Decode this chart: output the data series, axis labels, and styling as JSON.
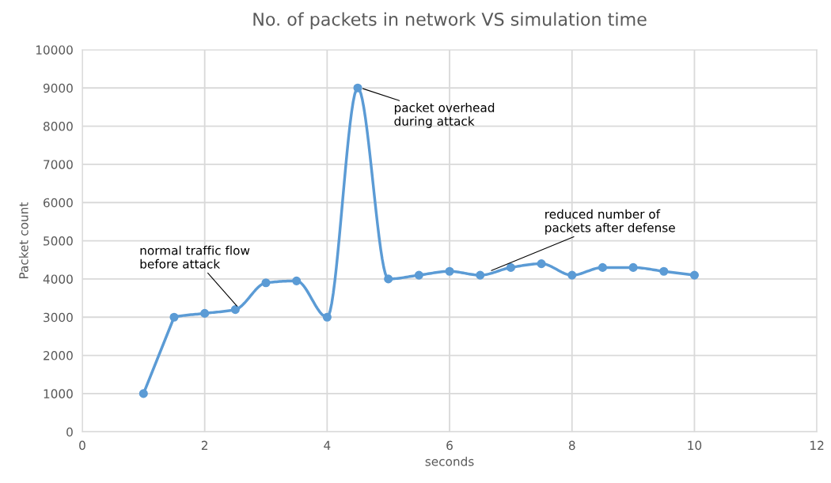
{
  "chart_data": {
    "type": "line",
    "title": "No. of packets in network VS simulation time",
    "xlabel": "seconds",
    "ylabel": "Packet count",
    "x": [
      1,
      1.5,
      2,
      2.5,
      3,
      3.5,
      4,
      4.5,
      5,
      5.5,
      6,
      6.5,
      7,
      7.5,
      8,
      8.5,
      9,
      9.5,
      10
    ],
    "series": [
      {
        "color": "#5b9bd5",
        "values": [
          1000,
          3000,
          3100,
          3200,
          3900,
          3950,
          3000,
          9000,
          4000,
          4100,
          4200,
          4100,
          4300,
          4400,
          4100,
          4300,
          4300,
          4200,
          4100
        ]
      }
    ],
    "xlim": [
      0,
      12
    ],
    "xticks": [
      0,
      2,
      4,
      6,
      8,
      10,
      12
    ],
    "ylim": [
      0,
      10000
    ],
    "yticks": [
      0,
      1000,
      2000,
      3000,
      4000,
      5000,
      6000,
      7000,
      8000,
      9000,
      10000
    ],
    "grid": true,
    "marker": "circle",
    "line_style": "solid",
    "annotations": [
      {
        "text": "normal traffic flow\nbefore attack",
        "x": 2.55,
        "y": 3250
      },
      {
        "text": "packet overhead\nduring attack",
        "x": 4.55,
        "y": 9000
      },
      {
        "text": "reduced number of\npackets after defense",
        "x": 6.65,
        "y": 4200
      }
    ]
  }
}
